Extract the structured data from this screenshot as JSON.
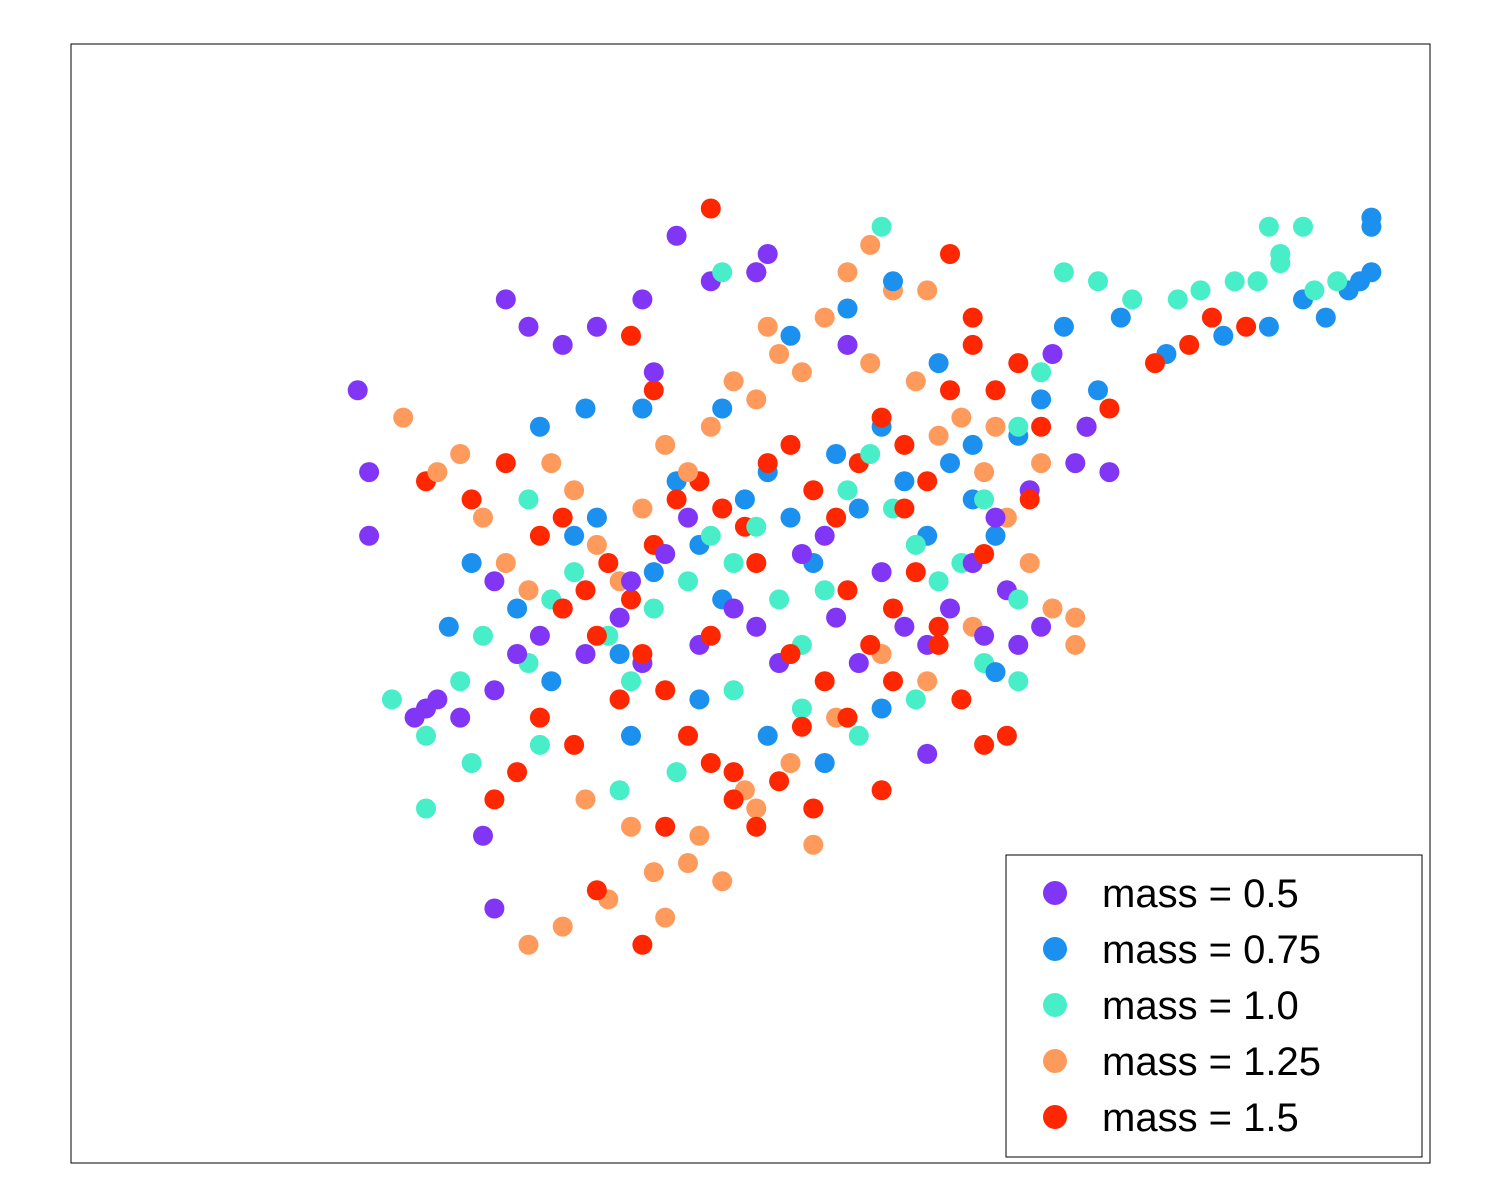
{
  "chart_data": {
    "type": "scatter",
    "title": "",
    "xlabel": "",
    "ylabel": "",
    "xlim": [
      0,
      100
    ],
    "ylim": [
      0,
      100
    ],
    "grid": false,
    "axis_ticks": false,
    "legend_position": "lower-right",
    "series": [
      {
        "name": "mass = 0.5",
        "color": "#8236f5",
        "points": [
          [
            13,
            58
          ],
          [
            18,
            39
          ],
          [
            19,
            40
          ],
          [
            21,
            38
          ],
          [
            24,
            41
          ],
          [
            24,
            53
          ],
          [
            26,
            45
          ],
          [
            28,
            47
          ],
          [
            30,
            50
          ],
          [
            32,
            45
          ],
          [
            35,
            49
          ],
          [
            37,
            44
          ],
          [
            36,
            53
          ],
          [
            39,
            56
          ],
          [
            41,
            60
          ],
          [
            42,
            46
          ],
          [
            45,
            50
          ],
          [
            47,
            48
          ],
          [
            49,
            44
          ],
          [
            51,
            56
          ],
          [
            53,
            58
          ],
          [
            54,
            49
          ],
          [
            56,
            44
          ],
          [
            58,
            54
          ],
          [
            60,
            48
          ],
          [
            62,
            46
          ],
          [
            64,
            50
          ],
          [
            66,
            55
          ],
          [
            68,
            60
          ],
          [
            69,
            52
          ],
          [
            70,
            46
          ],
          [
            72,
            48
          ],
          [
            71,
            63
          ],
          [
            75,
            66
          ],
          [
            78,
            65
          ],
          [
            33,
            81
          ],
          [
            37,
            84
          ],
          [
            43,
            86
          ],
          [
            47,
            87
          ],
          [
            48,
            89
          ],
          [
            38,
            76
          ],
          [
            40,
            91
          ],
          [
            25,
            84
          ],
          [
            27,
            81
          ],
          [
            30,
            79
          ],
          [
            23,
            25
          ],
          [
            17,
            38
          ],
          [
            13,
            65
          ],
          [
            24,
            17
          ],
          [
            12,
            74
          ],
          [
            73,
            78
          ],
          [
            76,
            70
          ],
          [
            62,
            34
          ],
          [
            67,
            47
          ],
          [
            55,
            79
          ]
        ]
      },
      {
        "name": "mass = 0.75",
        "color": "#1b90ef",
        "points": [
          [
            20,
            48
          ],
          [
            22,
            55
          ],
          [
            26,
            50
          ],
          [
            29,
            42
          ],
          [
            31,
            58
          ],
          [
            33,
            60
          ],
          [
            35,
            45
          ],
          [
            38,
            54
          ],
          [
            40,
            64
          ],
          [
            42,
            57
          ],
          [
            44,
            51
          ],
          [
            46,
            62
          ],
          [
            48,
            65
          ],
          [
            50,
            60
          ],
          [
            52,
            55
          ],
          [
            54,
            67
          ],
          [
            56,
            61
          ],
          [
            58,
            70
          ],
          [
            60,
            64
          ],
          [
            62,
            58
          ],
          [
            64,
            66
          ],
          [
            66,
            62
          ],
          [
            68,
            58
          ],
          [
            70,
            69
          ],
          [
            72,
            73
          ],
          [
            74,
            81
          ],
          [
            77,
            74
          ],
          [
            79,
            82
          ],
          [
            83,
            78
          ],
          [
            88,
            80
          ],
          [
            92,
            81
          ],
          [
            95,
            84
          ],
          [
            97,
            82
          ],
          [
            99,
            85
          ],
          [
            100,
            86
          ],
          [
            101,
            87
          ],
          [
            101,
            92
          ],
          [
            101,
            93
          ],
          [
            28,
            70
          ],
          [
            32,
            72
          ],
          [
            37,
            72
          ],
          [
            44,
            72
          ],
          [
            50,
            80
          ],
          [
            55,
            83
          ],
          [
            59,
            86
          ],
          [
            63,
            77
          ],
          [
            66,
            68
          ],
          [
            36,
            36
          ],
          [
            42,
            40
          ],
          [
            48,
            36
          ],
          [
            53,
            33
          ],
          [
            58,
            39
          ],
          [
            68,
            43
          ]
        ]
      },
      {
        "name": "mass = 1.0",
        "color": "#48eec7",
        "points": [
          [
            15,
            40
          ],
          [
            18,
            36
          ],
          [
            21,
            42
          ],
          [
            23,
            47
          ],
          [
            27,
            44
          ],
          [
            29,
            51
          ],
          [
            31,
            54
          ],
          [
            34,
            47
          ],
          [
            36,
            42
          ],
          [
            38,
            50
          ],
          [
            41,
            53
          ],
          [
            43,
            58
          ],
          [
            45,
            55
          ],
          [
            47,
            59
          ],
          [
            49,
            51
          ],
          [
            51,
            46
          ],
          [
            53,
            52
          ],
          [
            55,
            63
          ],
          [
            57,
            67
          ],
          [
            59,
            61
          ],
          [
            61,
            57
          ],
          [
            63,
            53
          ],
          [
            65,
            55
          ],
          [
            67,
            62
          ],
          [
            70,
            70
          ],
          [
            72,
            76
          ],
          [
            74,
            87
          ],
          [
            77,
            86
          ],
          [
            80,
            84
          ],
          [
            84,
            84
          ],
          [
            86,
            85
          ],
          [
            89,
            86
          ],
          [
            91,
            86
          ],
          [
            93,
            88
          ],
          [
            96,
            85
          ],
          [
            98,
            86
          ],
          [
            95,
            92
          ],
          [
            92,
            92
          ],
          [
            93,
            89
          ],
          [
            18,
            28
          ],
          [
            22,
            33
          ],
          [
            28,
            35
          ],
          [
            35,
            30
          ],
          [
            40,
            32
          ],
          [
            45,
            41
          ],
          [
            51,
            39
          ],
          [
            56,
            36
          ],
          [
            61,
            40
          ],
          [
            67,
            44
          ],
          [
            70,
            51
          ],
          [
            44,
            87
          ],
          [
            58,
            92
          ],
          [
            70,
            42
          ],
          [
            27,
            62
          ]
        ]
      },
      {
        "name": "mass = 1.25",
        "color": "#fe9a5b",
        "points": [
          [
            16,
            71
          ],
          [
            19,
            65
          ],
          [
            21,
            67
          ],
          [
            23,
            60
          ],
          [
            25,
            55
          ],
          [
            27,
            52
          ],
          [
            29,
            66
          ],
          [
            31,
            63
          ],
          [
            33,
            57
          ],
          [
            35,
            53
          ],
          [
            37,
            61
          ],
          [
            39,
            68
          ],
          [
            41,
            65
          ],
          [
            43,
            70
          ],
          [
            45,
            75
          ],
          [
            47,
            73
          ],
          [
            49,
            78
          ],
          [
            51,
            76
          ],
          [
            53,
            82
          ],
          [
            55,
            87
          ],
          [
            57,
            90
          ],
          [
            59,
            85
          ],
          [
            61,
            75
          ],
          [
            63,
            69
          ],
          [
            65,
            71
          ],
          [
            67,
            65
          ],
          [
            69,
            60
          ],
          [
            71,
            55
          ],
          [
            73,
            50
          ],
          [
            66,
            48
          ],
          [
            62,
            42
          ],
          [
            58,
            45
          ],
          [
            54,
            38
          ],
          [
            50,
            33
          ],
          [
            46,
            30
          ],
          [
            42,
            25
          ],
          [
            38,
            21
          ],
          [
            34,
            18
          ],
          [
            30,
            15
          ],
          [
            27,
            13
          ],
          [
            32,
            29
          ],
          [
            36,
            26
          ],
          [
            41,
            22
          ],
          [
            47,
            28
          ],
          [
            52,
            24
          ],
          [
            44,
            20
          ],
          [
            39,
            16
          ],
          [
            62,
            85
          ],
          [
            68,
            70
          ],
          [
            72,
            66
          ],
          [
            75,
            49
          ],
          [
            75,
            46
          ],
          [
            57,
            77
          ],
          [
            48,
            81
          ]
        ]
      },
      {
        "name": "mass = 1.5",
        "color": "#fe2700",
        "points": [
          [
            18,
            64
          ],
          [
            22,
            62
          ],
          [
            25,
            66
          ],
          [
            28,
            58
          ],
          [
            30,
            60
          ],
          [
            32,
            52
          ],
          [
            34,
            55
          ],
          [
            36,
            51
          ],
          [
            38,
            57
          ],
          [
            40,
            62
          ],
          [
            42,
            64
          ],
          [
            44,
            61
          ],
          [
            46,
            59
          ],
          [
            48,
            66
          ],
          [
            50,
            68
          ],
          [
            52,
            63
          ],
          [
            54,
            60
          ],
          [
            56,
            66
          ],
          [
            58,
            71
          ],
          [
            60,
            68
          ],
          [
            62,
            64
          ],
          [
            64,
            74
          ],
          [
            66,
            79
          ],
          [
            68,
            74
          ],
          [
            70,
            77
          ],
          [
            72,
            70
          ],
          [
            76,
            70
          ],
          [
            78,
            72
          ],
          [
            82,
            77
          ],
          [
            85,
            79
          ],
          [
            87,
            82
          ],
          [
            90,
            81
          ],
          [
            64,
            89
          ],
          [
            66,
            82
          ],
          [
            47,
            87
          ],
          [
            43,
            94
          ],
          [
            36,
            80
          ],
          [
            38,
            74
          ],
          [
            30,
            50
          ],
          [
            33,
            47
          ],
          [
            37,
            45
          ],
          [
            39,
            41
          ],
          [
            41,
            36
          ],
          [
            43,
            33
          ],
          [
            45,
            29
          ],
          [
            47,
            26
          ],
          [
            49,
            31
          ],
          [
            51,
            37
          ],
          [
            53,
            42
          ],
          [
            55,
            38
          ],
          [
            57,
            46
          ],
          [
            59,
            50
          ],
          [
            61,
            54
          ],
          [
            63,
            46
          ],
          [
            65,
            40
          ],
          [
            67,
            35
          ],
          [
            69,
            36
          ],
          [
            28,
            38
          ],
          [
            26,
            32
          ],
          [
            24,
            29
          ],
          [
            33,
            19
          ],
          [
            37,
            13
          ],
          [
            45,
            32
          ],
          [
            50,
            45
          ],
          [
            55,
            52
          ],
          [
            60,
            61
          ],
          [
            47,
            55
          ],
          [
            43,
            47
          ],
          [
            35,
            40
          ],
          [
            31,
            35
          ],
          [
            59,
            42
          ],
          [
            63,
            48
          ],
          [
            67,
            56
          ],
          [
            71,
            62
          ],
          [
            58,
            30
          ],
          [
            52,
            28
          ],
          [
            39,
            26
          ]
        ]
      }
    ]
  }
}
